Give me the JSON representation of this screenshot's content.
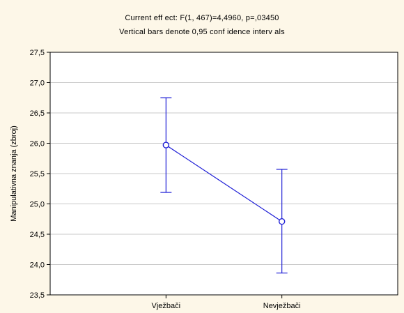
{
  "chart_data": {
    "type": "line",
    "title": "Current eff ect: F(1, 467)=4,4960, p=,03450",
    "subtitle": "Vertical bars denote 0,95 conf idence interv als",
    "xlabel": "",
    "ylabel": "Manipulativna znanja (zbroj)",
    "categories": [
      "Vježbači",
      "Nevježbači"
    ],
    "series": [
      {
        "values": [
          25.97,
          24.71
        ],
        "ci_lower": [
          25.19,
          23.86
        ],
        "ci_upper": [
          26.75,
          25.57
        ]
      }
    ],
    "ylim": [
      23.5,
      27.5
    ],
    "yticks": [
      23.5,
      24.0,
      24.5,
      25.0,
      25.5,
      26.0,
      26.5,
      27.0,
      27.5
    ],
    "ytick_labels": [
      "23,5",
      "24,0",
      "24,5",
      "25,0",
      "25,5",
      "26,0",
      "26,5",
      "27,0",
      "27,5"
    ],
    "grid": true,
    "colors": {
      "series": "#1e1ed6",
      "grid": "#c8c8c8",
      "axis": "#000000",
      "plot_bg": "#ffffff",
      "figure_bg": "#fdf7e8"
    }
  }
}
